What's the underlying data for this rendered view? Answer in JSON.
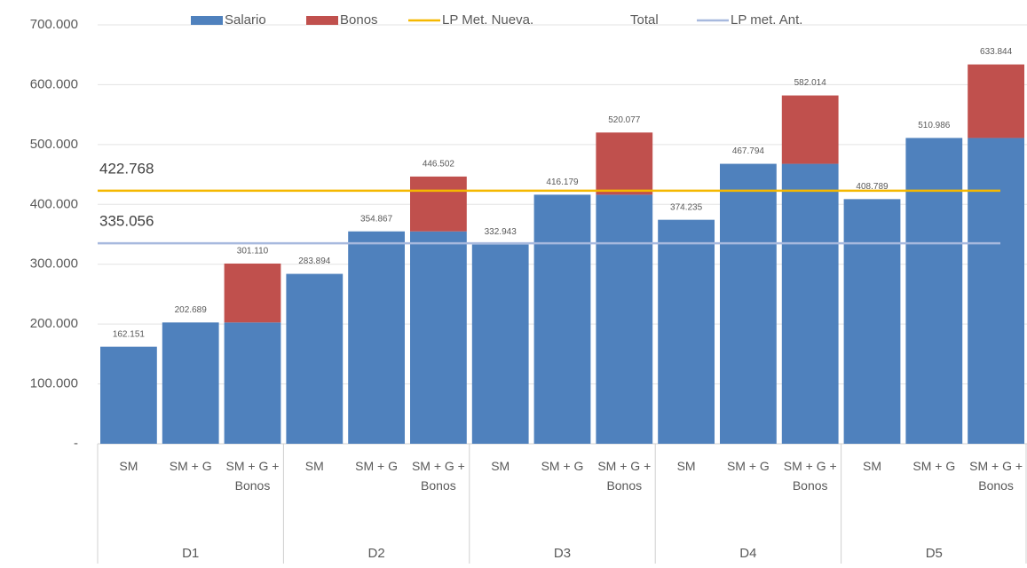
{
  "chart_data": {
    "type": "stacked-bar",
    "categories": [
      "SM",
      "SM + G",
      "SM + G + Bonos",
      "SM",
      "SM + G",
      "SM + G + Bonos",
      "SM",
      "SM + G",
      "SM + G + Bonos",
      "SM",
      "SM + G",
      "SM + G + Bonos",
      "SM",
      "SM + G",
      "SM + G + Bonos"
    ],
    "groups": [
      "D1",
      "D2",
      "D3",
      "D4",
      "D5"
    ],
    "series": [
      {
        "name": "Salario",
        "color": "#4f81bd",
        "values": [
          162151,
          202689,
          202689,
          283894,
          354867,
          354867,
          332943,
          416179,
          416179,
          374235,
          467794,
          467794,
          408789,
          510986,
          510986
        ]
      },
      {
        "name": "Bonos",
        "color": "#c0504d",
        "values": [
          null,
          null,
          98421,
          null,
          null,
          91635,
          null,
          null,
          103898,
          null,
          null,
          114220,
          null,
          null,
          122858
        ]
      },
      {
        "name": "LP Met. Nueva.",
        "color": "#f5b800",
        "type": "hline",
        "value": 422768,
        "value_label": "422.768"
      },
      {
        "name": "Total",
        "type": "labels",
        "values": [
          162151,
          202689,
          301110,
          283894,
          354867,
          446502,
          332943,
          416179,
          520077,
          374235,
          467794,
          582014,
          408789,
          510986,
          633844
        ],
        "value_labels": [
          "162.151",
          "202.689",
          "301.110",
          "283.894",
          "354.867",
          "446.502",
          "332.943",
          "416.179",
          "520.077",
          "374.235",
          "467.794",
          "582.014",
          "408.789",
          "510.986",
          "633.844"
        ]
      },
      {
        "name": "LP met. Ant.",
        "color": "#a7b9de",
        "type": "hline",
        "value": 335056,
        "value_label": "335.056"
      }
    ],
    "ylim": [
      0,
      700000
    ],
    "yticks": [
      {
        "value": 0,
        "label": "-"
      },
      {
        "value": 100000,
        "label": "100.000"
      },
      {
        "value": 200000,
        "label": "200.000"
      },
      {
        "value": 300000,
        "label": "300.000"
      },
      {
        "value": 400000,
        "label": "400.000"
      },
      {
        "value": 500000,
        "label": "500.000"
      },
      {
        "value": 600000,
        "label": "600.000"
      },
      {
        "value": 700000,
        "label": "700.000"
      }
    ],
    "grid": true
  }
}
